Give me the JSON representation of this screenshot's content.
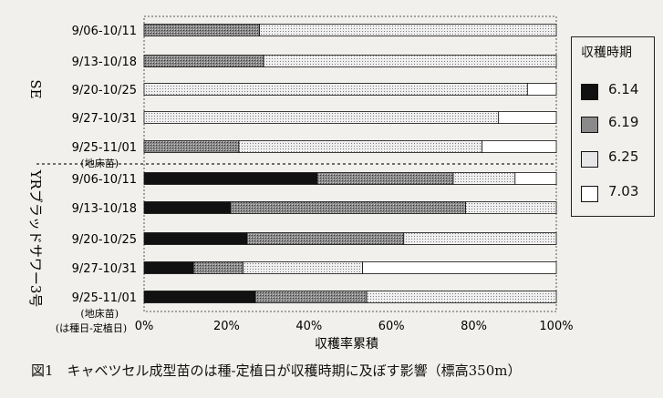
{
  "chart_data": {
    "type": "bar",
    "orientation": "horizontal",
    "stacked": true,
    "xlabel": "収穫率累積",
    "x_ticks": [
      "0%",
      "20%",
      "40%",
      "60%",
      "80%",
      "100%"
    ],
    "xlim": [
      0,
      100
    ],
    "legend": {
      "title": "収穫時期",
      "position": "right",
      "entries": [
        "6.14",
        "6.19",
        "6.25",
        "7.03"
      ],
      "patterns": [
        "solid-black",
        "dark-stipple",
        "light-stipple",
        "white"
      ]
    },
    "groups": [
      {
        "name": "SE",
        "categories": [
          {
            "label": "9/06-10/11",
            "values": [
              0,
              28,
              72,
              0
            ]
          },
          {
            "label": "9/13-10/18",
            "values": [
              0,
              29,
              71,
              0
            ]
          },
          {
            "label": "9/20-10/25",
            "values": [
              0,
              0,
              93,
              7
            ]
          },
          {
            "label": "9/27-10/31",
            "values": [
              0,
              0,
              86,
              14
            ]
          },
          {
            "label": "9/25-11/01",
            "sublabel": "(地床苗)",
            "values": [
              0,
              23,
              59,
              18
            ]
          }
        ]
      },
      {
        "name": "YRブラッドサワー3号",
        "categories": [
          {
            "label": "9/06-10/11",
            "values": [
              42,
              33,
              15,
              10
            ]
          },
          {
            "label": "9/13-10/18",
            "values": [
              21,
              57,
              22,
              0
            ]
          },
          {
            "label": "9/20-10/25",
            "values": [
              25,
              38,
              37,
              0
            ]
          },
          {
            "label": "9/27-10/31",
            "values": [
              12,
              12,
              29,
              47
            ]
          },
          {
            "label": "9/25-11/01",
            "sublabel": "(地床苗)",
            "values": [
              27,
              27,
              46,
              0
            ]
          }
        ]
      }
    ],
    "footnote": "(は種日-定植日)",
    "grid": false
  },
  "caption": "図1　キャベツセル成型苗のは種-定植日が収穫時期に及ぼす影響（標高350m）"
}
